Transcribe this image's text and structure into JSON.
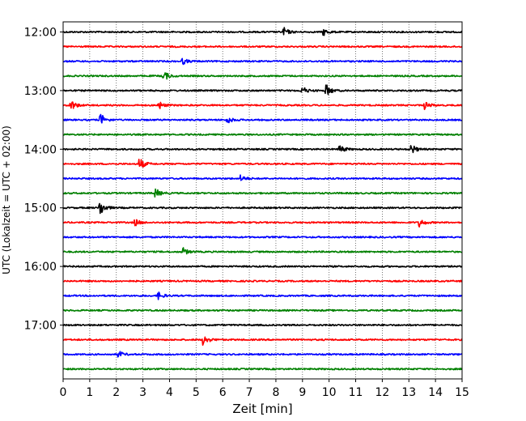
{
  "chart_data": {
    "type": "line",
    "subtype": "helicorder",
    "xlabel": "Zeit  [min]",
    "ylabel": "UTC (Lokalzeit = UTC + 02:00)",
    "xlim": [
      0,
      15
    ],
    "x_ticks": [
      0,
      1,
      2,
      3,
      4,
      5,
      6,
      7,
      8,
      9,
      10,
      11,
      12,
      13,
      14,
      15
    ],
    "y_tick_labels": [
      "12:00",
      "13:00",
      "14:00",
      "15:00",
      "16:00",
      "17:00"
    ],
    "trace_interval_min": 15,
    "trace_start_times": [
      "12:00",
      "12:15",
      "12:30",
      "12:45",
      "13:00",
      "13:15",
      "13:30",
      "13:45",
      "14:00",
      "14:15",
      "14:30",
      "14:45",
      "15:00",
      "15:15",
      "15:30",
      "15:45",
      "16:00",
      "16:15",
      "16:30",
      "16:45",
      "17:00",
      "17:15",
      "17:30",
      "17:45"
    ],
    "trace_colors": [
      "#000000",
      "#ff0000",
      "#0000ff",
      "#008000"
    ],
    "grid_x": true,
    "grid_style": "dotted",
    "events": [
      {
        "trace": 0,
        "minute": 8.3,
        "amp": 1.3
      },
      {
        "trace": 0,
        "minute": 9.8,
        "amp": 1.0
      },
      {
        "trace": 2,
        "minute": 4.5,
        "amp": 0.9
      },
      {
        "trace": 3,
        "minute": 3.8,
        "amp": 1.5
      },
      {
        "trace": 4,
        "minute": 9.0,
        "amp": 1.2
      },
      {
        "trace": 4,
        "minute": 9.9,
        "amp": 1.8
      },
      {
        "trace": 5,
        "minute": 0.3,
        "amp": 1.6
      },
      {
        "trace": 5,
        "minute": 3.6,
        "amp": 1.2
      },
      {
        "trace": 5,
        "minute": 13.6,
        "amp": 1.2
      },
      {
        "trace": 6,
        "minute": 1.4,
        "amp": 2.0
      },
      {
        "trace": 6,
        "minute": 6.2,
        "amp": 0.9
      },
      {
        "trace": 8,
        "minute": 10.4,
        "amp": 1.4
      },
      {
        "trace": 8,
        "minute": 13.1,
        "amp": 1.5
      },
      {
        "trace": 9,
        "minute": 2.9,
        "amp": 1.6
      },
      {
        "trace": 10,
        "minute": 6.7,
        "amp": 0.9
      },
      {
        "trace": 11,
        "minute": 3.5,
        "amp": 1.2
      },
      {
        "trace": 12,
        "minute": 1.4,
        "amp": 2.3
      },
      {
        "trace": 13,
        "minute": 2.7,
        "amp": 1.1
      },
      {
        "trace": 13,
        "minute": 13.4,
        "amp": 1.3
      },
      {
        "trace": 15,
        "minute": 4.5,
        "amp": 1.2
      },
      {
        "trace": 18,
        "minute": 3.6,
        "amp": 1.0
      },
      {
        "trace": 21,
        "minute": 5.3,
        "amp": 1.6
      },
      {
        "trace": 22,
        "minute": 2.1,
        "amp": 0.9
      }
    ]
  }
}
